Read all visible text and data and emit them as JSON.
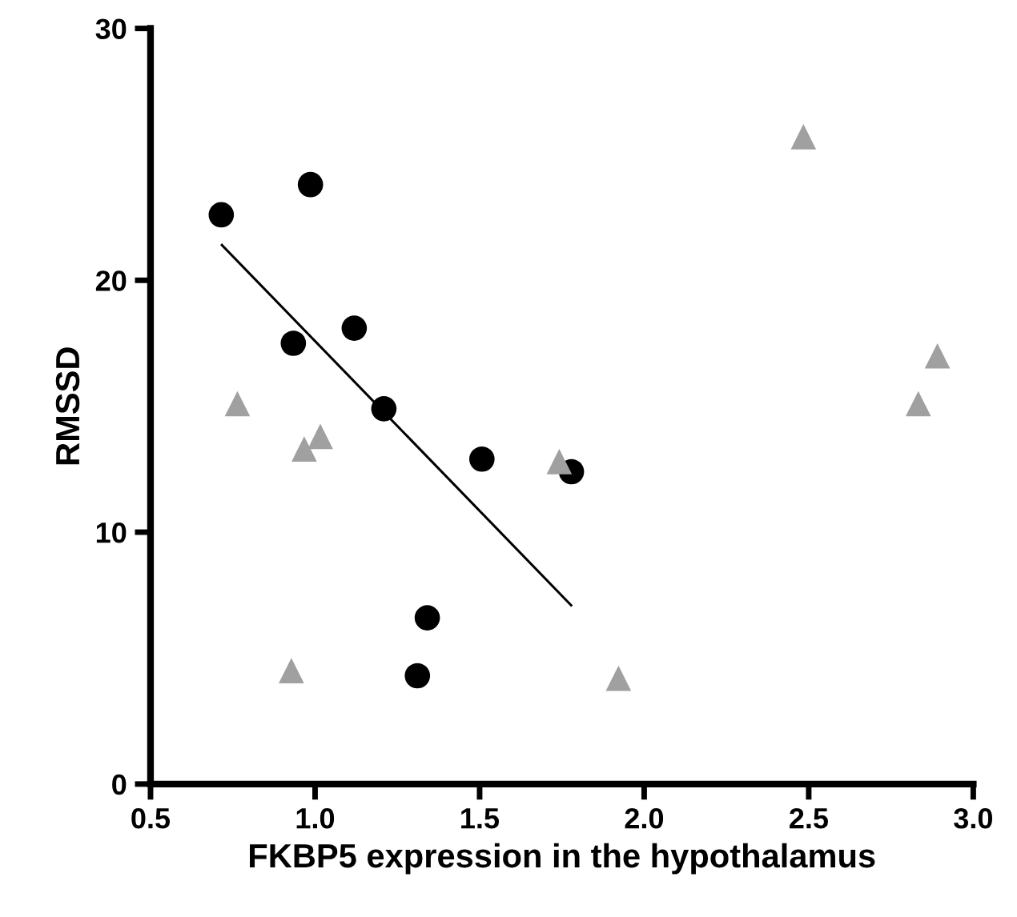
{
  "chart_data": {
    "type": "scatter",
    "xlabel": "FKBP5 expression in the hypothalamus",
    "ylabel": "RMSSD",
    "xlim": [
      0.5,
      3.0
    ],
    "xticks": [
      0.5,
      {
        "value": 1,
        "label": "1.0"
      },
      1.5,
      {
        "value": 2,
        "label": "2.0"
      },
      2.5,
      {
        "value": 3,
        "label": "3.0"
      }
    ],
    "ylim": [
      0,
      30
    ],
    "yticks": [
      0,
      10,
      20,
      30
    ],
    "grid": false,
    "legend": false,
    "series": [
      {
        "marker": "circle",
        "color": "#000000",
        "x": [
          0.715,
          0.986,
          0.934,
          1.119,
          1.209,
          1.507,
          1.779,
          1.341,
          1.311
        ],
        "values": [
          22.6,
          23.8,
          17.5,
          18.1,
          14.9,
          12.9,
          12.4,
          6.6,
          4.3
        ]
      },
      {
        "marker": "triangle",
        "color": "#a0a0a0",
        "x": [
          0.764,
          0.967,
          1.016,
          0.928,
          1.742,
          1.922,
          2.484,
          2.891,
          2.833
        ],
        "values": [
          15.1,
          13.3,
          13.8,
          4.5,
          12.8,
          4.2,
          25.7,
          17.0,
          15.1
        ]
      },
      {
        "type": "line",
        "color": "#000000",
        "x": [
          0.717,
          1.778
        ],
        "values": [
          21.4,
          7.1
        ]
      }
    ]
  }
}
